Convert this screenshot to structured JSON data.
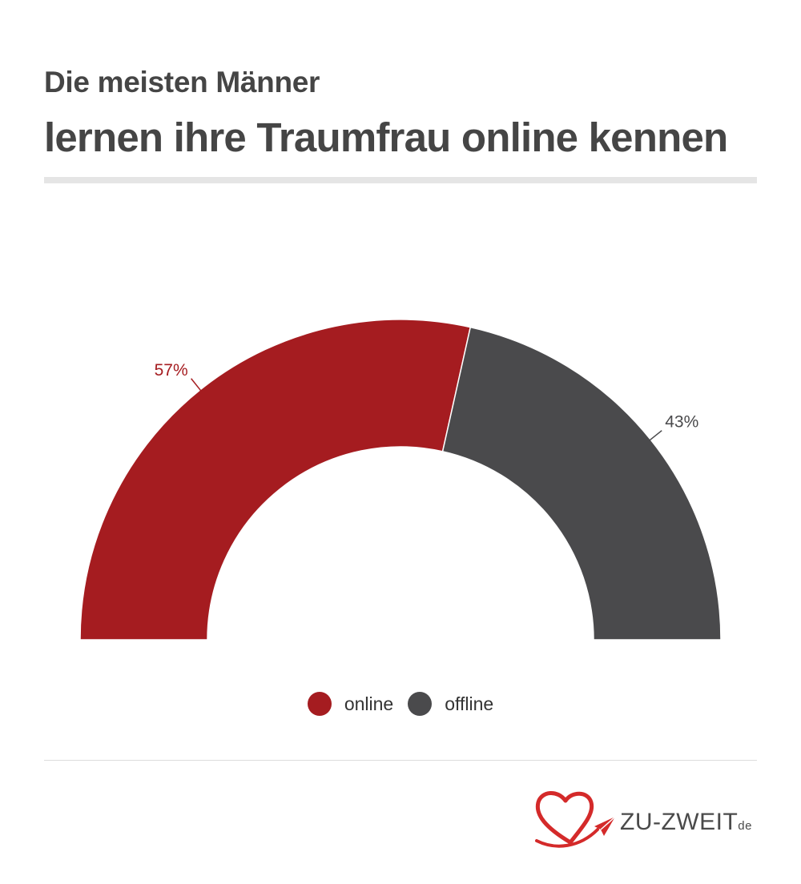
{
  "header": {
    "line1": "Die meisten Männer",
    "line2": "lernen ihre Traumfrau online kennen"
  },
  "colors": {
    "online": "#a51c20",
    "offline": "#4a4a4c",
    "title": "#454545"
  },
  "chart_data": {
    "type": "pie",
    "variant": "half-donut",
    "categories": [
      "online",
      "offline"
    ],
    "values": [
      57,
      43
    ],
    "labels": [
      "57%",
      "43%"
    ],
    "legend_position": "bottom-center"
  },
  "legend": {
    "items": [
      {
        "label": "online",
        "color": "#a51c20"
      },
      {
        "label": "offline",
        "color": "#4a4a4c"
      }
    ]
  },
  "logo": {
    "name": "ZU-ZWEIT",
    "tld": "de",
    "icon": "heart-paper-plane-icon"
  }
}
